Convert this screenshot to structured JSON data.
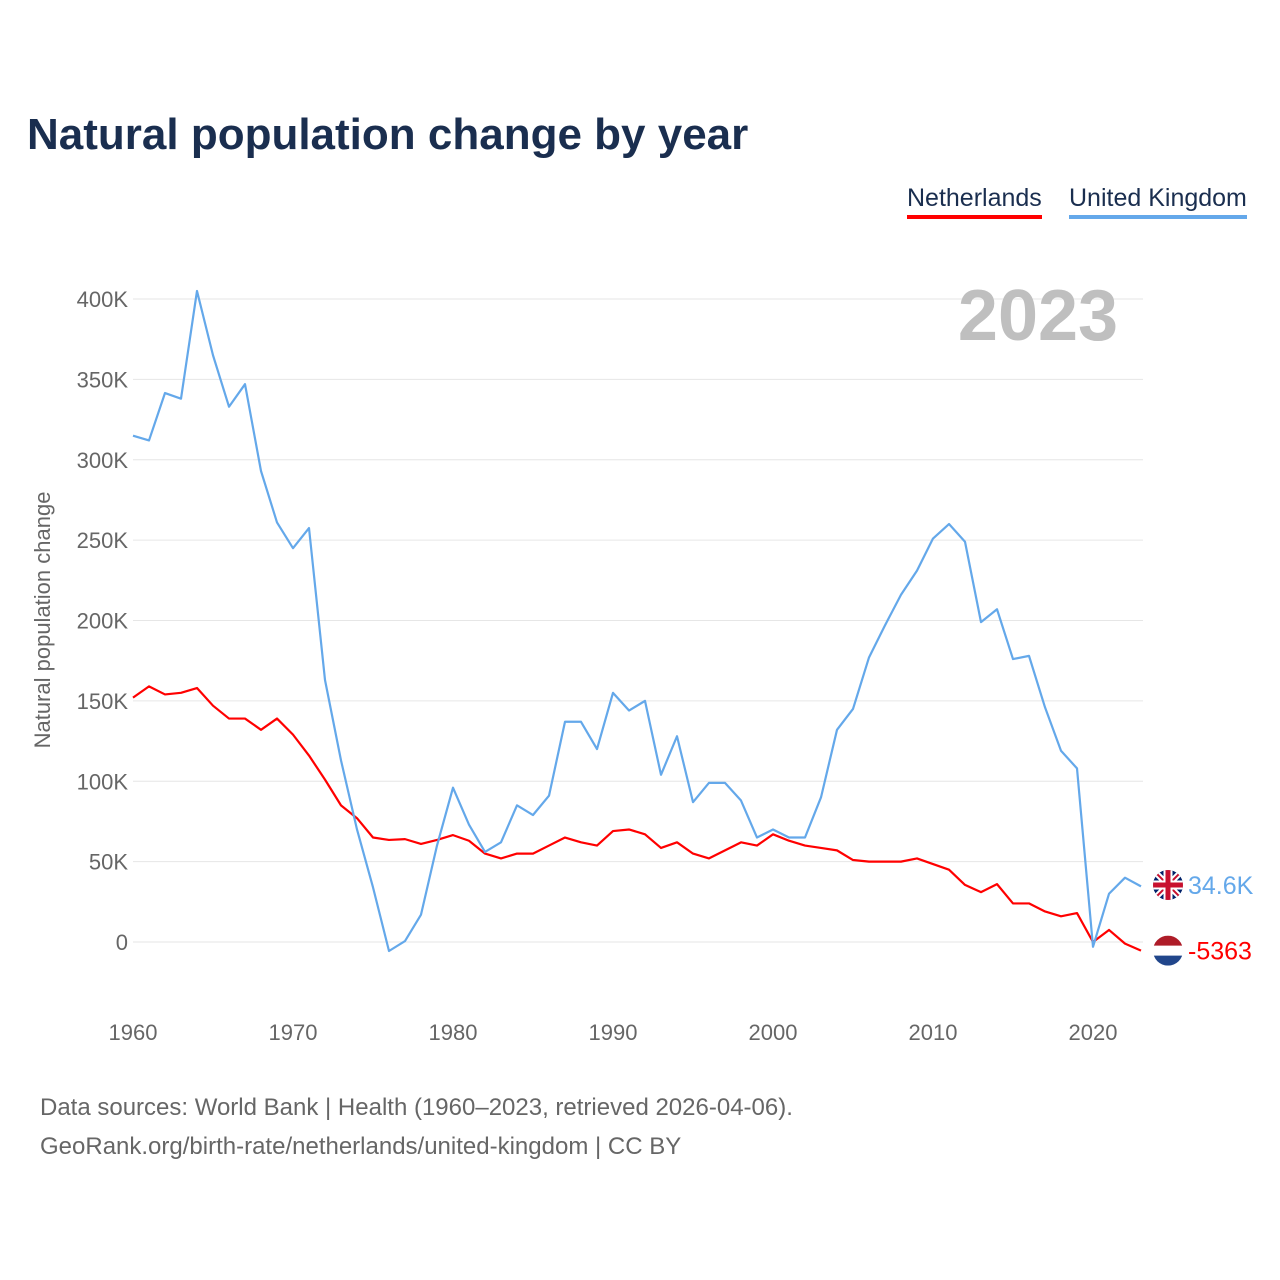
{
  "chart_data": {
    "type": "line",
    "title": "Natural population change by year",
    "ylabel": "Natural population change",
    "xlabel": "",
    "year_label": "2023",
    "ylim": [
      -60000,
      400000
    ],
    "yticks": [
      0,
      50000,
      100000,
      150000,
      200000,
      250000,
      300000,
      350000,
      400000
    ],
    "ytick_labels": [
      "0",
      "50K",
      "100K",
      "150K",
      "200K",
      "250K",
      "300K",
      "350K",
      "400K"
    ],
    "xticks": [
      1960,
      1970,
      1980,
      1990,
      2000,
      2010,
      2020
    ],
    "xtick_labels": [
      "1960",
      "1970",
      "1980",
      "1990",
      "2000",
      "2010",
      "2020"
    ],
    "grid": true,
    "legend": "top-right",
    "x_start": 1960,
    "series": [
      {
        "name": "Netherlands",
        "color": "#ff0000",
        "end_label": "-5363",
        "flag": "netherlands-flag",
        "values": [
          152000,
          159000,
          154000,
          155000,
          158000,
          147000,
          139000,
          139000,
          132000,
          139000,
          129000,
          116000,
          101000,
          85000,
          77000,
          65000,
          63500,
          64000,
          61000,
          63500,
          66500,
          63000,
          55000,
          52000,
          55000,
          55000,
          60000,
          65000,
          62000,
          60000,
          69000,
          70000,
          67000,
          58500,
          62000,
          55000,
          52000,
          57000,
          62000,
          60000,
          67000,
          63000,
          60000,
          58500,
          57000,
          51000,
          50000,
          50000,
          50000,
          52000,
          48500,
          45000,
          35500,
          31000,
          36000,
          24000,
          24000,
          19000,
          16000,
          18000,
          0,
          7500,
          -1000,
          -5363
        ]
      },
      {
        "name": "United Kingdom",
        "color": "#64a8ea",
        "end_label": "34.6K",
        "flag": "uk-flag",
        "values": [
          315000,
          312000,
          341500,
          338000,
          405000,
          365000,
          333000,
          347000,
          293000,
          261000,
          245000,
          257500,
          163000,
          113000,
          70000,
          34000,
          -5600,
          600,
          17000,
          60000,
          96000,
          73000,
          56000,
          62000,
          85000,
          79000,
          91000,
          137000,
          137000,
          120000,
          155000,
          144000,
          150000,
          104000,
          128000,
          87000,
          99000,
          99000,
          88000,
          65000,
          70000,
          65000,
          65000,
          90000,
          132000,
          145000,
          177000,
          197000,
          216000,
          231000,
          251000,
          260000,
          249000,
          199000,
          207000,
          176000,
          178000,
          146000,
          119000,
          108000,
          -3000,
          30000,
          40000,
          34600
        ]
      }
    ]
  },
  "footer": {
    "line1": "Data sources: World Bank | Health (1960–2023, retrieved 2026-04-06).",
    "line2": "GeoRank.org/birth-rate/netherlands/united-kingdom | CC BY"
  }
}
